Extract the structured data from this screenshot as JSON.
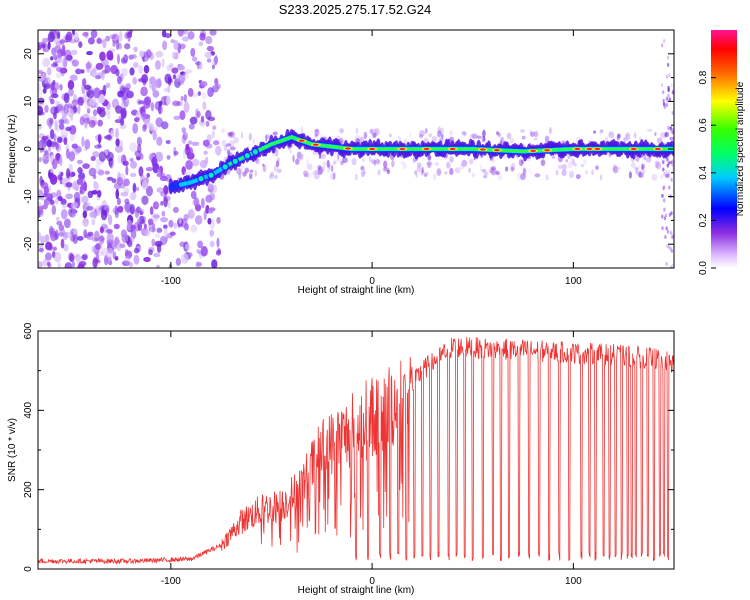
{
  "figure": {
    "title": "S233.2025.275.17.52.G24"
  },
  "chart_data": [
    {
      "type": "heatmap",
      "subtype": "frequency-spectrogram",
      "xlabel": "Height of straight line (km)",
      "ylabel": "Frequency (Hz)",
      "xlim": [
        -166,
        150
      ],
      "ylim": [
        -25,
        25
      ],
      "xticks": [
        -100,
        0,
        100
      ],
      "yticks": [
        -20,
        -10,
        0,
        10,
        20
      ],
      "colorbar": {
        "label": "Normalized spectral amplitude",
        "range": [
          0.0,
          1.0
        ],
        "ticks": [
          0.0,
          0.2,
          0.4,
          0.6,
          0.8
        ],
        "colormap": [
          "#ffffff",
          "#8a2be2",
          "#0000ff",
          "#00ffff",
          "#00ff00",
          "#ffff00",
          "#ff0000",
          "#ff1493"
        ]
      },
      "signal_track": [
        {
          "x": -100,
          "y": -8
        },
        {
          "x": -90,
          "y": -7
        },
        {
          "x": -80,
          "y": -5.5
        },
        {
          "x": -70,
          "y": -3
        },
        {
          "x": -60,
          "y": -1
        },
        {
          "x": -50,
          "y": 1
        },
        {
          "x": -40,
          "y": 2.5
        },
        {
          "x": -30,
          "y": 1
        },
        {
          "x": -20,
          "y": 0.5
        },
        {
          "x": -10,
          "y": 0
        },
        {
          "x": 0,
          "y": 0
        },
        {
          "x": 25,
          "y": 0
        },
        {
          "x": 50,
          "y": 0
        },
        {
          "x": 75,
          "y": -0.5
        },
        {
          "x": 100,
          "y": 0
        },
        {
          "x": 125,
          "y": 0
        },
        {
          "x": 150,
          "y": 0
        }
      ]
    },
    {
      "type": "line",
      "xlabel": "Height of straight line (km)",
      "ylabel": "SNR (10 * v/v)",
      "xlim": [
        -166,
        150
      ],
      "ylim": [
        0,
        600
      ],
      "xticks": [
        -100,
        0,
        100
      ],
      "yticks": [
        0,
        200,
        400,
        600
      ],
      "series": [
        {
          "name": "SNR",
          "color": "#ee3333",
          "envelope": [
            {
              "x": -166,
              "y": 20
            },
            {
              "x": -120,
              "y": 20
            },
            {
              "x": -90,
              "y": 25
            },
            {
              "x": -75,
              "y": 60
            },
            {
              "x": -65,
              "y": 120
            },
            {
              "x": -55,
              "y": 150
            },
            {
              "x": -45,
              "y": 160
            },
            {
              "x": -35,
              "y": 210
            },
            {
              "x": -25,
              "y": 300
            },
            {
              "x": -15,
              "y": 330
            },
            {
              "x": -5,
              "y": 370
            },
            {
              "x": 5,
              "y": 400
            },
            {
              "x": 15,
              "y": 430
            },
            {
              "x": 25,
              "y": 500
            },
            {
              "x": 40,
              "y": 560
            },
            {
              "x": 60,
              "y": 555
            },
            {
              "x": 80,
              "y": 550
            },
            {
              "x": 100,
              "y": 545
            },
            {
              "x": 120,
              "y": 540
            },
            {
              "x": 140,
              "y": 530
            },
            {
              "x": 150,
              "y": 520
            }
          ],
          "dropouts_x": [
            -8,
            -2,
            4,
            9,
            13,
            17,
            21,
            25,
            29,
            33,
            38,
            42,
            46,
            50,
            55,
            60,
            64,
            68,
            73,
            78,
            83,
            88,
            93,
            98,
            104,
            108,
            111,
            115,
            118,
            121,
            124,
            127,
            129,
            131,
            134,
            137,
            140,
            143,
            145,
            147
          ]
        }
      ]
    }
  ]
}
